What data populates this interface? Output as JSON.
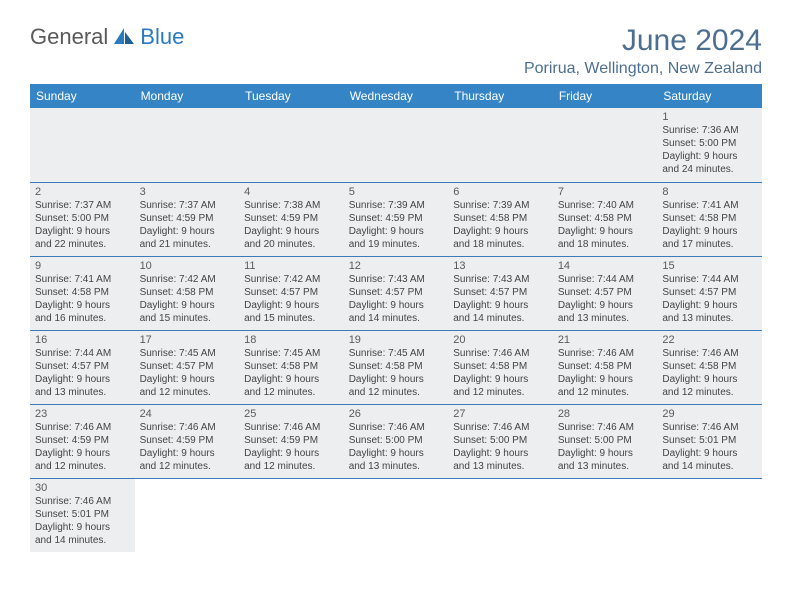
{
  "brand": {
    "part1": "General",
    "part2": "Blue"
  },
  "title": "June 2024",
  "location": "Porirua, Wellington, New Zealand",
  "colors": {
    "header_bg": "#3585c6",
    "title_color": "#4d6f8f",
    "row_alt_bg": "#eceef0",
    "border": "#3b7cb8"
  },
  "weekdays": [
    "Sunday",
    "Monday",
    "Tuesday",
    "Wednesday",
    "Thursday",
    "Friday",
    "Saturday"
  ],
  "weeks": [
    [
      null,
      null,
      null,
      null,
      null,
      null,
      {
        "n": "1",
        "sr": "Sunrise: 7:36 AM",
        "ss": "Sunset: 5:00 PM",
        "d1": "Daylight: 9 hours",
        "d2": "and 24 minutes."
      }
    ],
    [
      {
        "n": "2",
        "sr": "Sunrise: 7:37 AM",
        "ss": "Sunset: 5:00 PM",
        "d1": "Daylight: 9 hours",
        "d2": "and 22 minutes."
      },
      {
        "n": "3",
        "sr": "Sunrise: 7:37 AM",
        "ss": "Sunset: 4:59 PM",
        "d1": "Daylight: 9 hours",
        "d2": "and 21 minutes."
      },
      {
        "n": "4",
        "sr": "Sunrise: 7:38 AM",
        "ss": "Sunset: 4:59 PM",
        "d1": "Daylight: 9 hours",
        "d2": "and 20 minutes."
      },
      {
        "n": "5",
        "sr": "Sunrise: 7:39 AM",
        "ss": "Sunset: 4:59 PM",
        "d1": "Daylight: 9 hours",
        "d2": "and 19 minutes."
      },
      {
        "n": "6",
        "sr": "Sunrise: 7:39 AM",
        "ss": "Sunset: 4:58 PM",
        "d1": "Daylight: 9 hours",
        "d2": "and 18 minutes."
      },
      {
        "n": "7",
        "sr": "Sunrise: 7:40 AM",
        "ss": "Sunset: 4:58 PM",
        "d1": "Daylight: 9 hours",
        "d2": "and 18 minutes."
      },
      {
        "n": "8",
        "sr": "Sunrise: 7:41 AM",
        "ss": "Sunset: 4:58 PM",
        "d1": "Daylight: 9 hours",
        "d2": "and 17 minutes."
      }
    ],
    [
      {
        "n": "9",
        "sr": "Sunrise: 7:41 AM",
        "ss": "Sunset: 4:58 PM",
        "d1": "Daylight: 9 hours",
        "d2": "and 16 minutes."
      },
      {
        "n": "10",
        "sr": "Sunrise: 7:42 AM",
        "ss": "Sunset: 4:58 PM",
        "d1": "Daylight: 9 hours",
        "d2": "and 15 minutes."
      },
      {
        "n": "11",
        "sr": "Sunrise: 7:42 AM",
        "ss": "Sunset: 4:57 PM",
        "d1": "Daylight: 9 hours",
        "d2": "and 15 minutes."
      },
      {
        "n": "12",
        "sr": "Sunrise: 7:43 AM",
        "ss": "Sunset: 4:57 PM",
        "d1": "Daylight: 9 hours",
        "d2": "and 14 minutes."
      },
      {
        "n": "13",
        "sr": "Sunrise: 7:43 AM",
        "ss": "Sunset: 4:57 PM",
        "d1": "Daylight: 9 hours",
        "d2": "and 14 minutes."
      },
      {
        "n": "14",
        "sr": "Sunrise: 7:44 AM",
        "ss": "Sunset: 4:57 PM",
        "d1": "Daylight: 9 hours",
        "d2": "and 13 minutes."
      },
      {
        "n": "15",
        "sr": "Sunrise: 7:44 AM",
        "ss": "Sunset: 4:57 PM",
        "d1": "Daylight: 9 hours",
        "d2": "and 13 minutes."
      }
    ],
    [
      {
        "n": "16",
        "sr": "Sunrise: 7:44 AM",
        "ss": "Sunset: 4:57 PM",
        "d1": "Daylight: 9 hours",
        "d2": "and 13 minutes."
      },
      {
        "n": "17",
        "sr": "Sunrise: 7:45 AM",
        "ss": "Sunset: 4:57 PM",
        "d1": "Daylight: 9 hours",
        "d2": "and 12 minutes."
      },
      {
        "n": "18",
        "sr": "Sunrise: 7:45 AM",
        "ss": "Sunset: 4:58 PM",
        "d1": "Daylight: 9 hours",
        "d2": "and 12 minutes."
      },
      {
        "n": "19",
        "sr": "Sunrise: 7:45 AM",
        "ss": "Sunset: 4:58 PM",
        "d1": "Daylight: 9 hours",
        "d2": "and 12 minutes."
      },
      {
        "n": "20",
        "sr": "Sunrise: 7:46 AM",
        "ss": "Sunset: 4:58 PM",
        "d1": "Daylight: 9 hours",
        "d2": "and 12 minutes."
      },
      {
        "n": "21",
        "sr": "Sunrise: 7:46 AM",
        "ss": "Sunset: 4:58 PM",
        "d1": "Daylight: 9 hours",
        "d2": "and 12 minutes."
      },
      {
        "n": "22",
        "sr": "Sunrise: 7:46 AM",
        "ss": "Sunset: 4:58 PM",
        "d1": "Daylight: 9 hours",
        "d2": "and 12 minutes."
      }
    ],
    [
      {
        "n": "23",
        "sr": "Sunrise: 7:46 AM",
        "ss": "Sunset: 4:59 PM",
        "d1": "Daylight: 9 hours",
        "d2": "and 12 minutes."
      },
      {
        "n": "24",
        "sr": "Sunrise: 7:46 AM",
        "ss": "Sunset: 4:59 PM",
        "d1": "Daylight: 9 hours",
        "d2": "and 12 minutes."
      },
      {
        "n": "25",
        "sr": "Sunrise: 7:46 AM",
        "ss": "Sunset: 4:59 PM",
        "d1": "Daylight: 9 hours",
        "d2": "and 12 minutes."
      },
      {
        "n": "26",
        "sr": "Sunrise: 7:46 AM",
        "ss": "Sunset: 5:00 PM",
        "d1": "Daylight: 9 hours",
        "d2": "and 13 minutes."
      },
      {
        "n": "27",
        "sr": "Sunrise: 7:46 AM",
        "ss": "Sunset: 5:00 PM",
        "d1": "Daylight: 9 hours",
        "d2": "and 13 minutes."
      },
      {
        "n": "28",
        "sr": "Sunrise: 7:46 AM",
        "ss": "Sunset: 5:00 PM",
        "d1": "Daylight: 9 hours",
        "d2": "and 13 minutes."
      },
      {
        "n": "29",
        "sr": "Sunrise: 7:46 AM",
        "ss": "Sunset: 5:01 PM",
        "d1": "Daylight: 9 hours",
        "d2": "and 14 minutes."
      }
    ],
    [
      {
        "n": "30",
        "sr": "Sunrise: 7:46 AM",
        "ss": "Sunset: 5:01 PM",
        "d1": "Daylight: 9 hours",
        "d2": "and 14 minutes."
      },
      null,
      null,
      null,
      null,
      null,
      null
    ]
  ]
}
